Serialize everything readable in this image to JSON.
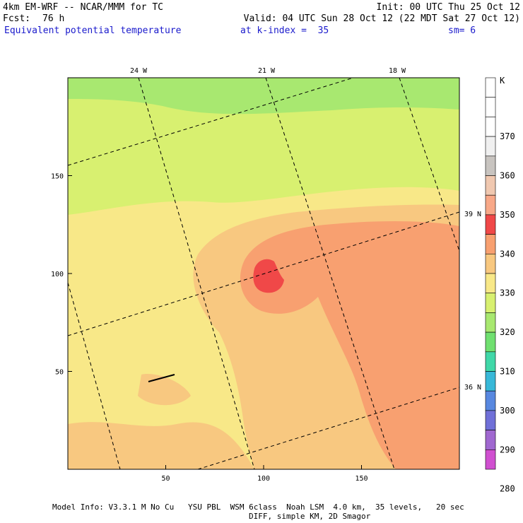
{
  "header": {
    "model": "4km EM-WRF -- NCAR/MMM for TC",
    "init": "Init: 00 UTC Thu 25 Oct 12",
    "fcst_label": "Fcst:",
    "fcst_value": "76 h",
    "valid": "Valid: 04 UTC Sun 28 Oct 12 (22 MDT Sat 27 Oct 12)",
    "field": "Equivalent potential temperature",
    "level": "at k-index =  35",
    "smooth": "sm= 6"
  },
  "axes": {
    "x_ticks": [
      {
        "label": "50",
        "value": 50
      },
      {
        "label": "100",
        "value": 100
      },
      {
        "label": "150",
        "value": 150
      }
    ],
    "y_ticks": [
      {
        "label": "50",
        "value": 50
      },
      {
        "label": "100",
        "value": 100
      },
      {
        "label": "150",
        "value": 150
      }
    ],
    "x_range": [
      0,
      200
    ],
    "y_range": [
      0,
      200
    ],
    "lon_labels": [
      "24 W",
      "21 W",
      "18 W"
    ],
    "lat_labels": [
      "39 N",
      "36 N"
    ]
  },
  "colorbar": {
    "unit": "K",
    "levels": [
      {
        "label": "",
        "color": "#ffffff"
      },
      {
        "label": "370",
        "color": "#ffffff"
      },
      {
        "label": "360",
        "color": "#e8e8e8"
      },
      {
        "label": "350",
        "color": "#c8c4c0"
      },
      {
        "label": "340",
        "color": "#f0c8b0"
      },
      {
        "label": "330",
        "color": "#f8a888"
      },
      {
        "label": "320",
        "color": "#f04848"
      },
      {
        "label": "310",
        "color": "#f8a070"
      },
      {
        "label": "300",
        "color": "#f8c880"
      },
      {
        "label": "290",
        "color": "#f8e888"
      },
      {
        "label": "280",
        "color": "#d8f070"
      },
      {
        "label": "",
        "color": "#a8e870"
      },
      {
        "label": "",
        "color": "#70e070"
      },
      {
        "label": "",
        "color": "#40d8a8"
      },
      {
        "label": "",
        "color": "#38b8d8"
      },
      {
        "label": "",
        "color": "#5888e0"
      },
      {
        "label": "",
        "color": "#7070d8"
      },
      {
        "label": "",
        "color": "#a068d0"
      },
      {
        "label": "",
        "color": "#d050d0"
      }
    ],
    "label_values": [
      "370",
      "360",
      "350",
      "340",
      "330",
      "320",
      "310",
      "300",
      "290",
      "280"
    ]
  },
  "footer": {
    "line1": "Model Info: V3.3.1 M No Cu   YSU PBL  WSM 6class  Noah LSM  4.0 km,  35 levels,   20 sec",
    "line2": "DIFF, simple KM, 2D Smagor"
  }
}
